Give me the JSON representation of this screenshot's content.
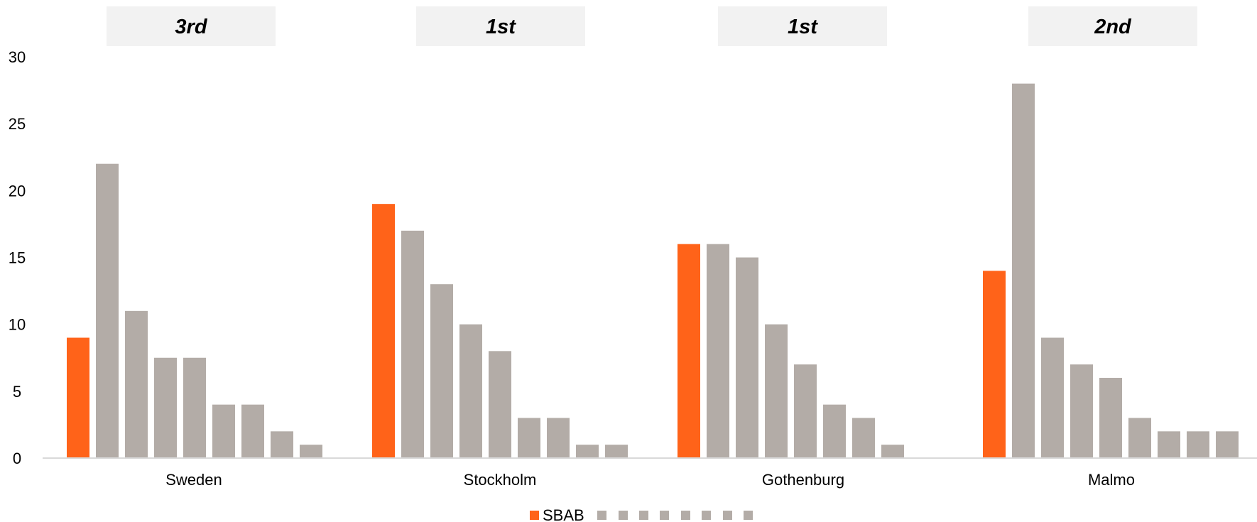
{
  "chart_data": {
    "type": "bar",
    "categories": [
      "Sweden",
      "Stockholm",
      "Gothenburg",
      "Malmo"
    ],
    "ranks": [
      "3rd",
      "1st",
      "1st",
      "2nd"
    ],
    "series": [
      {
        "name": "SBAB",
        "values": [
          9,
          19,
          16,
          14
        ]
      },
      {
        "values": [
          22,
          17,
          16,
          28
        ]
      },
      {
        "values": [
          11,
          13,
          15,
          9
        ]
      },
      {
        "values": [
          7.5,
          10,
          10,
          7
        ]
      },
      {
        "values": [
          7.5,
          8,
          7,
          6
        ]
      },
      {
        "values": [
          4,
          3,
          4,
          3
        ]
      },
      {
        "values": [
          4,
          3,
          3,
          2
        ]
      },
      {
        "values": [
          2,
          1,
          1,
          2
        ]
      },
      {
        "values": [
          1,
          1,
          null,
          2
        ]
      }
    ],
    "ylim": [
      0,
      30
    ],
    "yticks": [
      0,
      5,
      10,
      15,
      20,
      25,
      30
    ],
    "grid": false,
    "legend_position": "bottom",
    "colors": {
      "highlight": "#FF6319",
      "other": "#B3ACA7",
      "rank_box": "#F2F2F2",
      "axis": "#D9D9D9"
    }
  }
}
